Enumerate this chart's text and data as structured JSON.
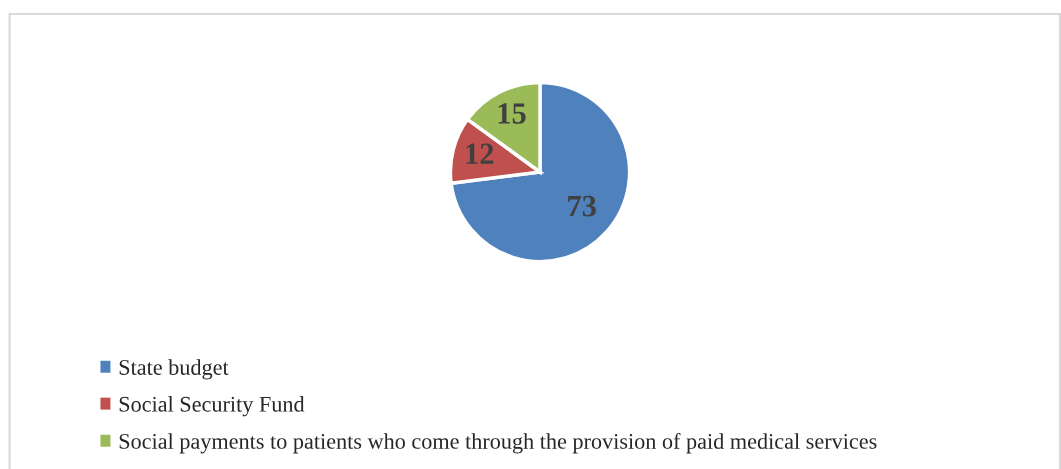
{
  "chart_data": {
    "type": "pie",
    "categories": [
      "State budget",
      "Social Security Fund",
      "Social payments to patients who come through the provision of paid medical services"
    ],
    "values": [
      73,
      12,
      15
    ],
    "colors": [
      "#4f81bd",
      "#c0504d",
      "#9bbb59"
    ],
    "data_labels": true,
    "legend": "bottom left"
  }
}
